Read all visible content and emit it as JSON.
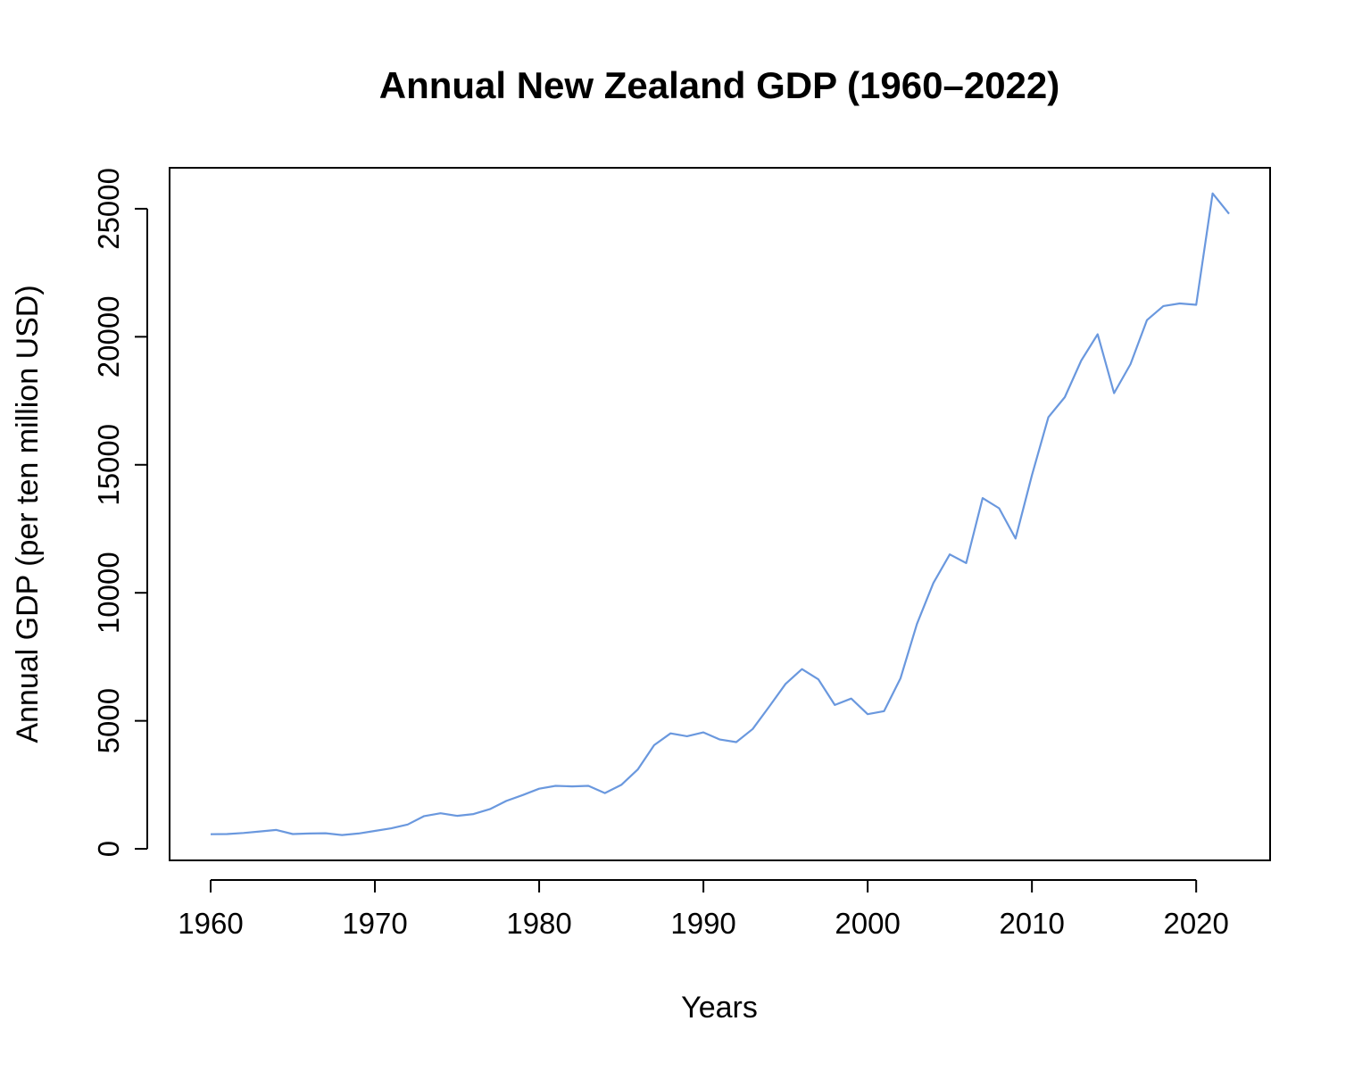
{
  "chart_data": {
    "type": "line",
    "title": "Annual New Zealand GDP (1960–2022)",
    "xlabel": "Years",
    "ylabel": "Annual GDP (per ten million USD)",
    "xlim": [
      1957.5,
      2024.5
    ],
    "ylim": [
      -450,
      26600
    ],
    "grid": false,
    "legend": "none",
    "x_ticks": [
      1960,
      1970,
      1980,
      1990,
      2000,
      2010,
      2020
    ],
    "x_tick_labels": [
      "1960",
      "1970",
      "1980",
      "1990",
      "2000",
      "2010",
      "2020"
    ],
    "y_ticks": [
      0,
      5000,
      10000,
      15000,
      20000,
      25000
    ],
    "y_tick_labels": [
      "0",
      "5000",
      "10000",
      "15000",
      "20000",
      "25000"
    ],
    "series": [
      {
        "name": "GDP",
        "color": "#6a98de",
        "x": [
          1960,
          1961,
          1962,
          1963,
          1964,
          1965,
          1966,
          1967,
          1968,
          1969,
          1970,
          1971,
          1972,
          1973,
          1974,
          1975,
          1976,
          1977,
          1978,
          1979,
          1980,
          1981,
          1982,
          1983,
          1984,
          1985,
          1986,
          1987,
          1988,
          1989,
          1990,
          1991,
          1992,
          1993,
          1994,
          1995,
          1996,
          1997,
          1998,
          1999,
          2000,
          2001,
          2002,
          2003,
          2004,
          2005,
          2006,
          2007,
          2008,
          2009,
          2010,
          2011,
          2012,
          2013,
          2014,
          2015,
          2016,
          2017,
          2018,
          2019,
          2020,
          2021,
          2022
        ],
        "values": [
          570,
          580,
          620,
          680,
          740,
          580,
          600,
          610,
          540,
          600,
          700,
          800,
          950,
          1280,
          1390,
          1290,
          1360,
          1550,
          1870,
          2100,
          2350,
          2460,
          2440,
          2460,
          2180,
          2500,
          3100,
          4050,
          4510,
          4400,
          4550,
          4270,
          4170,
          4680,
          5550,
          6440,
          7020,
          6620,
          5620,
          5870,
          5260,
          5380,
          6660,
          8780,
          10380,
          11500,
          11160,
          13700,
          13300,
          12120,
          14600,
          16860,
          17640,
          19070,
          20100,
          17800,
          18930,
          20650,
          21200,
          21300,
          21250,
          25600,
          24800
        ]
      }
    ]
  }
}
